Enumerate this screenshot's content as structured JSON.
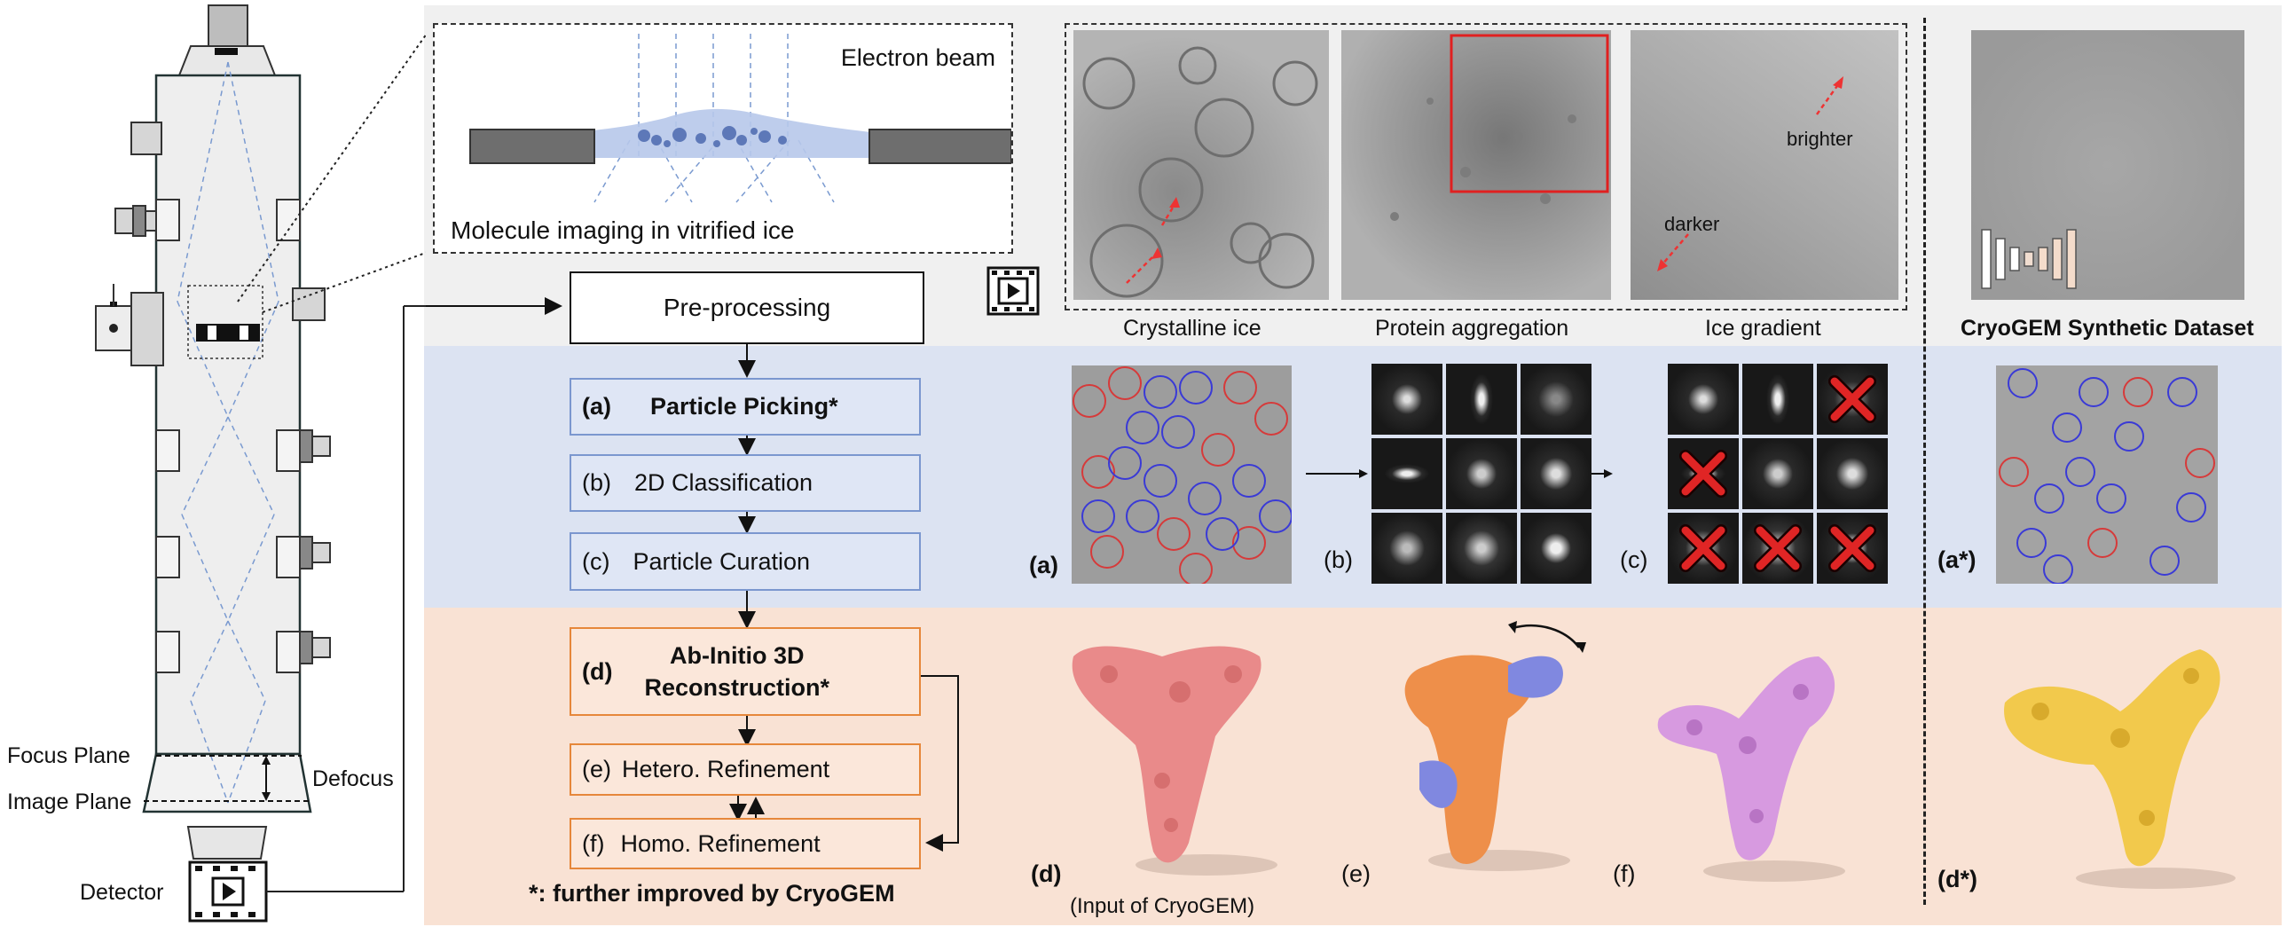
{
  "microscope": {
    "focus_plane": "Focus Plane",
    "image_plane": "Image Plane",
    "defocus": "Defocus",
    "detector": "Detector"
  },
  "inset": {
    "electron_beam": "Electron beam",
    "caption": "Molecule imaging in vitrified ice"
  },
  "micrographs": {
    "crystalline_ice": "Crystalline ice",
    "protein_aggregation": "Protein aggregation",
    "ice_gradient": "Ice gradient",
    "brighter": "brighter",
    "darker": "darker"
  },
  "pipeline": {
    "preprocessing": "Pre-processing",
    "a_tag": "(a)",
    "a_label": "Particle Picking*",
    "b_tag": "(b)",
    "b_label": "2D Classification",
    "c_tag": "(c)",
    "c_label": "Particle Curation",
    "d_tag": "(d)",
    "d_label_line1": "Ab-Initio 3D",
    "d_label_line2": "Reconstruction*",
    "e_tag": "(e)",
    "e_label": "Hetero. Refinement",
    "f_tag": "(f)",
    "f_label": "Homo. Refinement",
    "footnote": "*: further improved by CryoGEM"
  },
  "panels": {
    "a": "(a)",
    "b": "(b)",
    "c": "(c)",
    "d": "(d)",
    "d_caption": "(Input of CryoGEM)",
    "e": "(e)",
    "f": "(f)",
    "a_star": "(a*)",
    "d_star": "(d*)"
  },
  "cryogem": {
    "title": "CryoGEM Synthetic Dataset"
  },
  "colors": {
    "gray_bg": "#f0f0f0",
    "blue_bg": "#dce3f2",
    "orange_bg": "#f9e2d4",
    "blue_box": "#7b97cf",
    "orange_box": "#e6873a",
    "pick_red": "#d63a3a",
    "pick_blue": "#3a3ad6"
  }
}
